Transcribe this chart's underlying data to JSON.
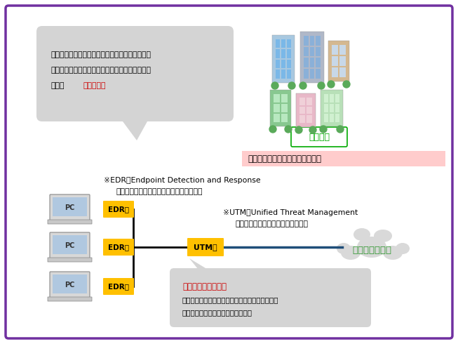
{
  "bg_color": "#ffffff",
  "border_color": "#7030a0",
  "border_lw": 2.5,
  "title_box_text": "企業内ネットワークのイメージ図",
  "title_box_bg": "#ffcccc",
  "chusho_text": "中小企業",
  "chusho_box_color": "#00aa00",
  "speech_bubble_bg": "#d4d4d4",
  "speech_bubble_text_line1": "従業員（ユーザー）が利用する各端末に導入し、",
  "speech_bubble_text_line2": "不審な挙動を検知し、迅速な対応につなげる働き",
  "speech_bubble_text_line3": "をする",
  "speech_bubble_highlight": "端末監視型",
  "speech_bubble_highlight_color": "#cc0000",
  "edr_note_line1": "※EDR：Endpoint Detection and Response",
  "edr_note_line2": "エンドポイントセキュリティソフトウェア",
  "utm_note_line1": "※UTM：Unified Threat Management",
  "utm_note_line2": "ネットワークセキュリティ監視装置",
  "edr_box_color": "#ffc000",
  "utm_box_color": "#ffc000",
  "line_color_internet": "#1f4e79",
  "internet_text": "インターネット",
  "internet_cloud_color": "#d9d9d9",
  "internet_text_color": "#339933",
  "network_bubble_bg": "#d4d4d4",
  "network_bubble_text_line1": "ネットワーク監視型",
  "network_bubble_text_line2": "企業のネットワーク構成にあわせ、適切な場所に",
  "network_bubble_text_line3": "設置し包括的に防御する働きをする",
  "network_bubble_highlight_color": "#cc0000"
}
